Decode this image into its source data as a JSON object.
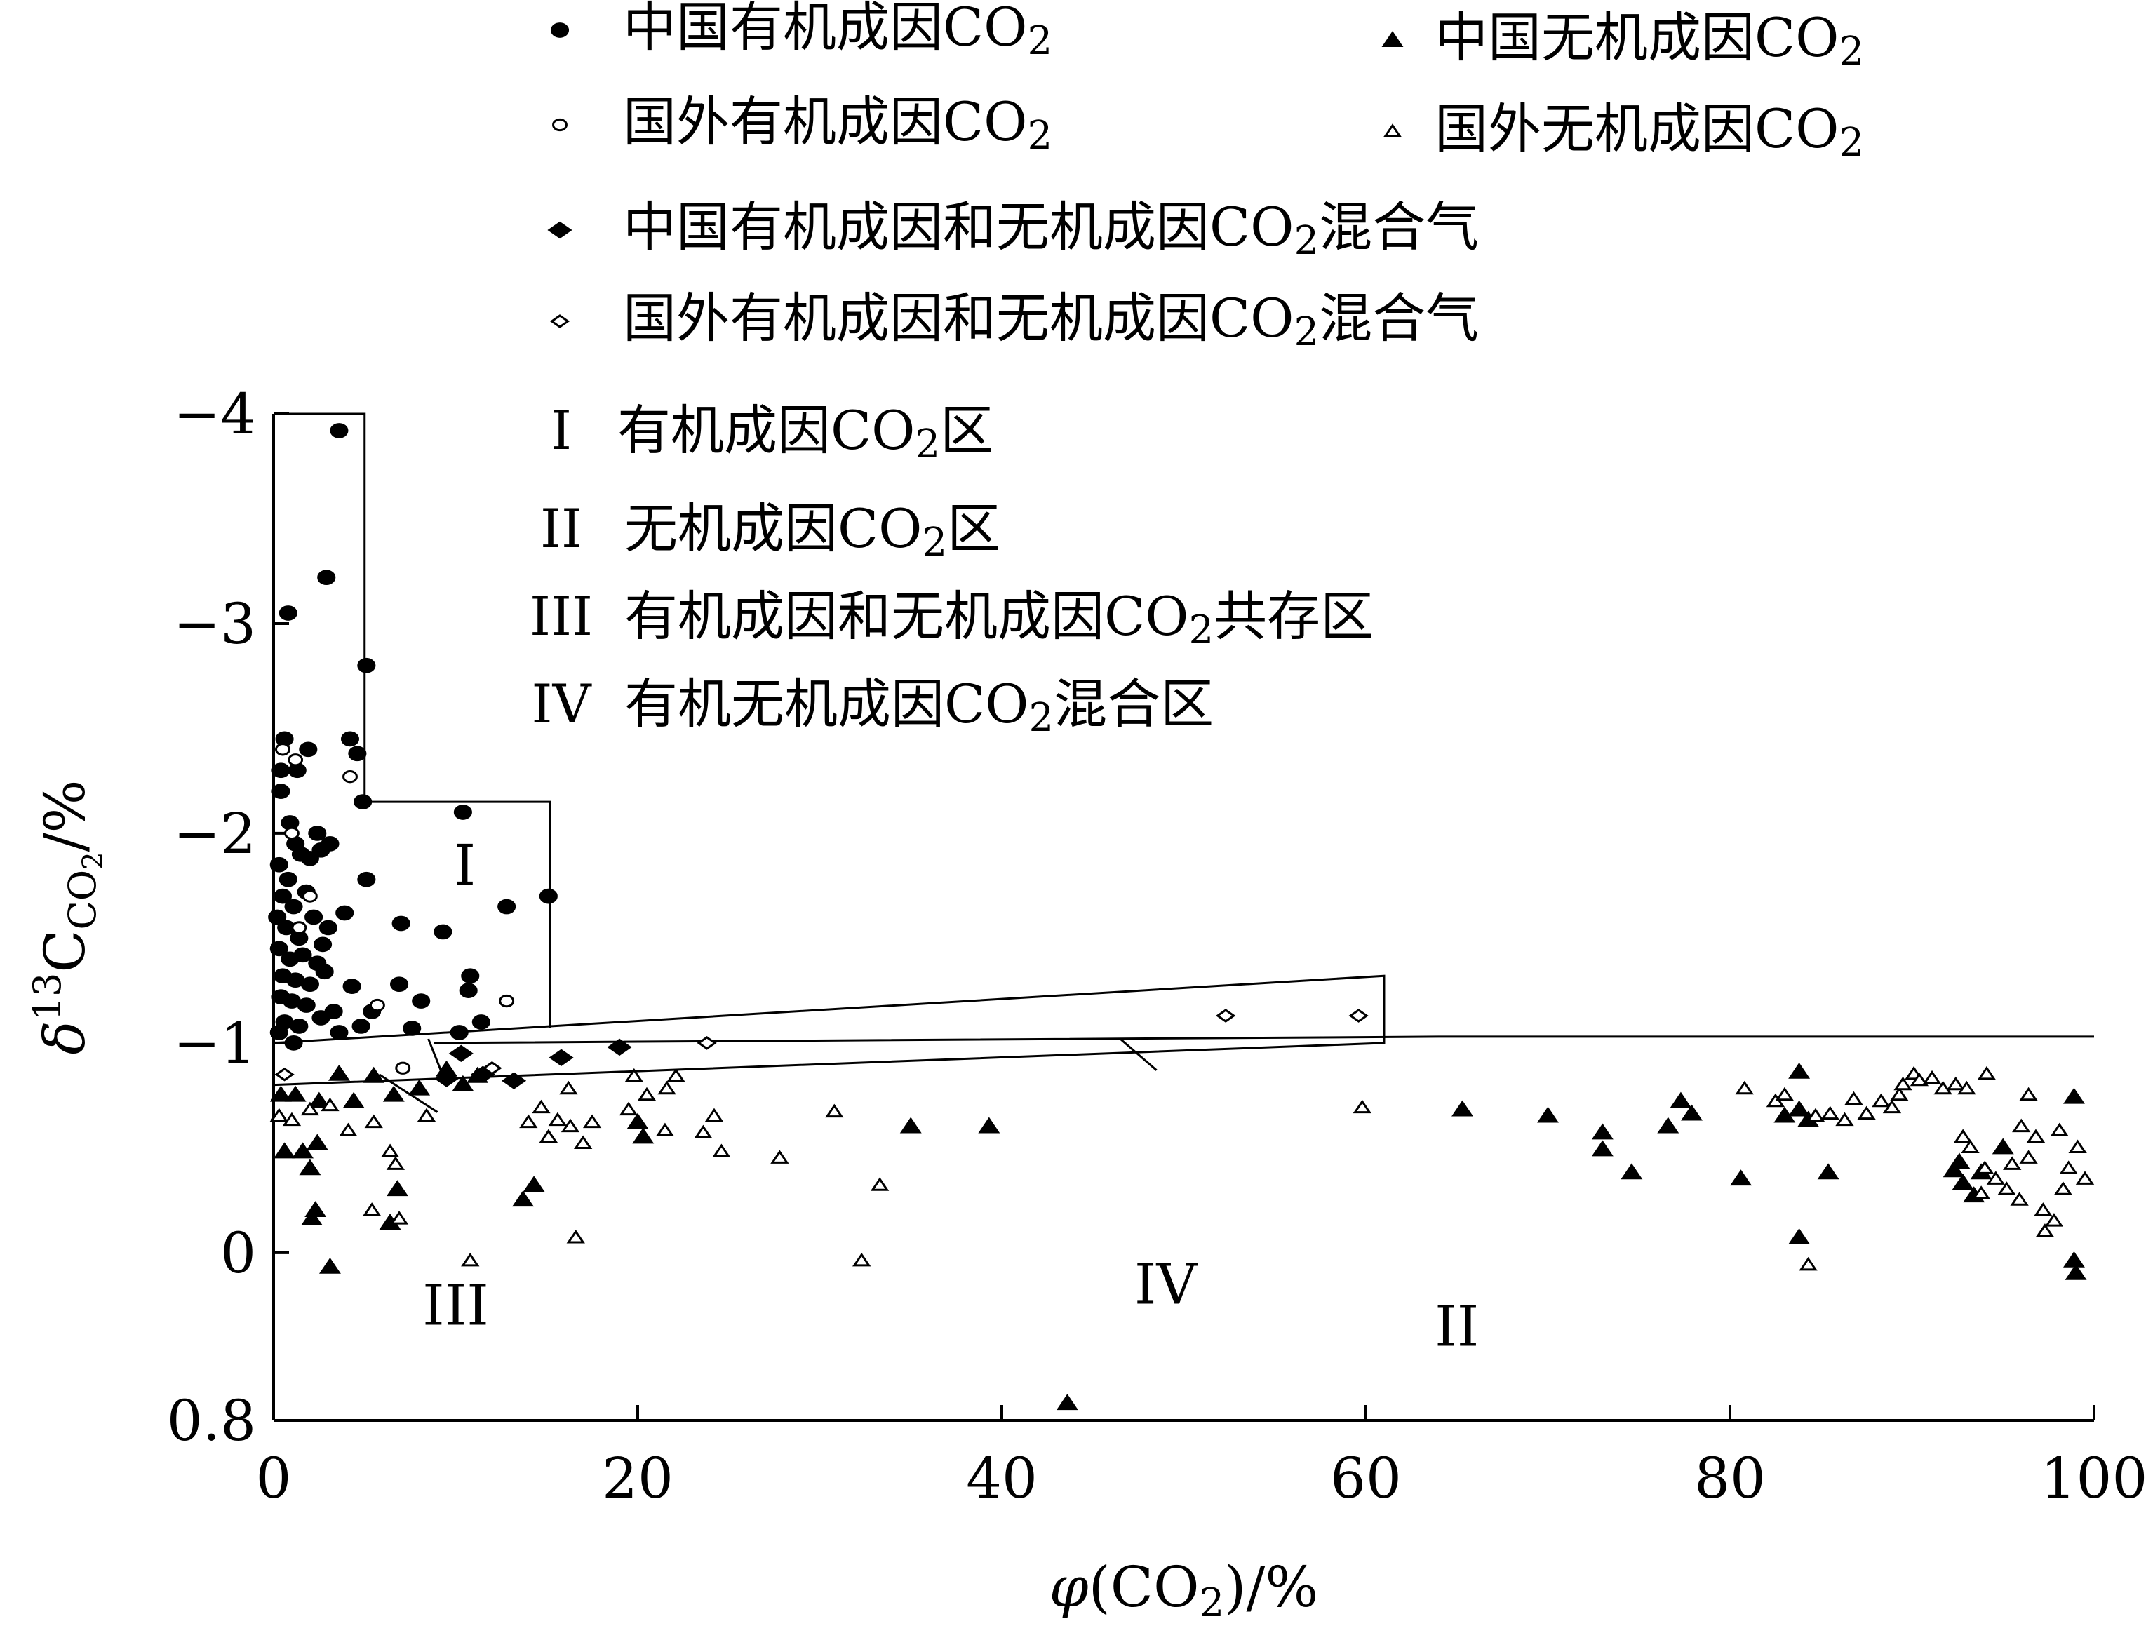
{
  "chart_data": {
    "type": "scatter",
    "xlabel": "φ(CO₂)/%",
    "ylabel": "δ13C_CO₂/%",
    "ylabel_parts": {
      "symbol": "δ",
      "sup": "13",
      "main": "C",
      "sub": "CO",
      "sub2": "2",
      "unit": "/%"
    },
    "xlabel_parts": {
      "symbol": "φ",
      "open": "(CO",
      "sub": "2",
      "close": ")/%"
    },
    "xlim": [
      0,
      100
    ],
    "ylim": [
      0.8,
      -4
    ],
    "x_ticks": [
      0,
      20,
      40,
      60,
      80,
      100
    ],
    "y_ticks": [
      {
        "value": -4,
        "label": "−4"
      },
      {
        "value": -3,
        "label": "−3"
      },
      {
        "value": -2,
        "label": "−2"
      },
      {
        "value": -1,
        "label": "−1"
      },
      {
        "value": 0,
        "label": "0"
      },
      {
        "value": 0.8,
        "label": "0.8"
      }
    ],
    "legend": [
      {
        "key": "cn_org",
        "marker": "circle-filled",
        "text": "中国有机成因CO",
        "sub": "2"
      },
      {
        "key": "cn_inorg",
        "marker": "triangle-filled",
        "text": "中国无机成因CO",
        "sub": "2"
      },
      {
        "key": "fr_org",
        "marker": "circle-open",
        "text": "国外有机成因CO",
        "sub": "2"
      },
      {
        "key": "fr_inorg",
        "marker": "triangle-open",
        "text": "国外无机成因CO",
        "sub": "2"
      },
      {
        "key": "cn_mix",
        "marker": "diamond-filled",
        "text": "中国有机成因和无机成因CO",
        "sub": "2",
        "suffix": "混合气"
      },
      {
        "key": "fr_mix",
        "marker": "diamond-open",
        "text": "国外有机成因和无机成因CO",
        "sub": "2",
        "suffix": "混合气"
      }
    ],
    "zone_legend": [
      {
        "numeral": "I",
        "text": "有机成因CO",
        "sub": "2",
        "suffix": "区"
      },
      {
        "numeral": "II",
        "text": "无机成因CO",
        "sub": "2",
        "suffix": "区"
      },
      {
        "numeral": "III",
        "text": "有机成因和无机成因CO",
        "sub": "2",
        "suffix": "共存区"
      },
      {
        "numeral": "IV",
        "text": "有机无机成因CO",
        "sub": "2",
        "suffix": "混合区"
      }
    ],
    "region_labels": [
      {
        "text": "I",
        "x": 10.5,
        "y": -1.85
      },
      {
        "text": "II",
        "x": 65,
        "y": 0.35
      },
      {
        "text": "III",
        "x": 10,
        "y": 0.25
      },
      {
        "text": "IV",
        "x": 49,
        "y": 0.15
      }
    ],
    "boundaries": {
      "zone_I": [
        [
          0,
          -4
        ],
        [
          5,
          -4
        ],
        [
          5,
          -2.15
        ],
        [
          15.2,
          -2.15
        ],
        [
          15.2,
          -1.07
        ]
      ],
      "zone_IV": [
        [
          0,
          -1.0
        ],
        [
          61,
          -1.32
        ],
        [
          61,
          -1.0
        ],
        [
          0,
          -0.8
        ]
      ],
      "zone_II_top": [
        [
          8.8,
          -1.0
        ],
        [
          64,
          -1.03
        ],
        [
          100,
          -1.03
        ]
      ],
      "zone_III_divider": [
        [
          8.5,
          -1.02
        ],
        [
          9.5,
          -0.8
        ]
      ],
      "leader_III": [
        [
          5.8,
          -0.85
        ],
        [
          9,
          -0.67
        ]
      ],
      "leader_IV": [
        [
          46.5,
          -1.02
        ],
        [
          48.5,
          -0.87
        ]
      ]
    },
    "series": [
      {
        "key": "cn_org",
        "points": [
          [
            3.6,
            -3.92
          ],
          [
            2.9,
            -3.22
          ],
          [
            0.8,
            -3.05
          ],
          [
            5.1,
            -2.8
          ],
          [
            4.2,
            -2.45
          ],
          [
            4.6,
            -2.38
          ],
          [
            4.9,
            -2.15
          ],
          [
            10.4,
            -2.1
          ],
          [
            0.4,
            -2.2
          ],
          [
            0.9,
            -2.05
          ],
          [
            1.2,
            -1.95
          ],
          [
            0.3,
            -1.85
          ],
          [
            0.8,
            -1.78
          ],
          [
            1.5,
            -1.9
          ],
          [
            2.0,
            -1.88
          ],
          [
            2.6,
            -1.92
          ],
          [
            0.5,
            -1.7
          ],
          [
            1.1,
            -1.65
          ],
          [
            1.8,
            -1.72
          ],
          [
            0.2,
            -1.6
          ],
          [
            0.7,
            -1.55
          ],
          [
            1.4,
            -1.5
          ],
          [
            2.2,
            -1.6
          ],
          [
            3.0,
            -1.55
          ],
          [
            0.3,
            -1.45
          ],
          [
            0.9,
            -1.4
          ],
          [
            1.6,
            -1.42
          ],
          [
            2.4,
            -1.38
          ],
          [
            0.5,
            -1.32
          ],
          [
            1.2,
            -1.3
          ],
          [
            2.0,
            -1.28
          ],
          [
            2.8,
            -1.34
          ],
          [
            0.4,
            -1.22
          ],
          [
            1.0,
            -1.2
          ],
          [
            1.8,
            -1.18
          ],
          [
            0.6,
            -1.1
          ],
          [
            1.4,
            -1.08
          ],
          [
            2.6,
            -1.12
          ],
          [
            0.3,
            -1.05
          ],
          [
            1.1,
            -1.0
          ],
          [
            5.1,
            -1.78
          ],
          [
            15.1,
            -1.7
          ],
          [
            12.8,
            -1.65
          ],
          [
            7.0,
            -1.57
          ],
          [
            9.3,
            -1.53
          ],
          [
            10.8,
            -1.32
          ],
          [
            10.7,
            -1.25
          ],
          [
            4.3,
            -1.27
          ],
          [
            6.9,
            -1.28
          ],
          [
            8.1,
            -1.2
          ],
          [
            11.4,
            -1.1
          ],
          [
            3.3,
            -1.15
          ],
          [
            4.8,
            -1.08
          ],
          [
            5.4,
            -1.15
          ],
          [
            3.6,
            -1.05
          ],
          [
            7.6,
            -1.07
          ],
          [
            10.2,
            -1.05
          ],
          [
            1.3,
            -2.3
          ],
          [
            1.9,
            -2.4
          ],
          [
            0.6,
            -2.45
          ],
          [
            0.4,
            -2.3
          ],
          [
            2.4,
            -2.0
          ],
          [
            3.1,
            -1.95
          ],
          [
            3.9,
            -1.62
          ],
          [
            2.7,
            -1.47
          ]
        ]
      },
      {
        "key": "fr_org",
        "points": [
          [
            0.5,
            -2.4
          ],
          [
            1.2,
            -2.35
          ],
          [
            4.2,
            -2.27
          ],
          [
            1.0,
            -2.0
          ],
          [
            2.0,
            -1.7
          ],
          [
            1.4,
            -1.55
          ],
          [
            12.8,
            -1.2
          ],
          [
            5.7,
            -1.18
          ],
          [
            7.1,
            -0.88
          ]
        ]
      },
      {
        "key": "cn_mix",
        "points": [
          [
            11.5,
            -0.85
          ],
          [
            13.2,
            -0.82
          ],
          [
            15.8,
            -0.93
          ],
          [
            19.0,
            -0.98
          ],
          [
            9.5,
            -0.83
          ],
          [
            10.3,
            -0.95
          ]
        ]
      },
      {
        "key": "fr_mix",
        "points": [
          [
            52.3,
            -1.13
          ],
          [
            59.6,
            -1.13
          ],
          [
            23.8,
            -1.0
          ],
          [
            12.0,
            -0.88
          ],
          [
            0.6,
            -0.85
          ]
        ]
      },
      {
        "key": "cn_inorg",
        "points": [
          [
            0.4,
            -0.75
          ],
          [
            1.2,
            -0.75
          ],
          [
            2.5,
            -0.72
          ],
          [
            3.6,
            -0.85
          ],
          [
            4.4,
            -0.72
          ],
          [
            5.5,
            -0.84
          ],
          [
            6.6,
            -0.75
          ],
          [
            8.0,
            -0.78
          ],
          [
            0.6,
            -0.48
          ],
          [
            1.6,
            -0.48
          ],
          [
            2.4,
            -0.52
          ],
          [
            2.0,
            -0.4
          ],
          [
            2.3,
            -0.2
          ],
          [
            2.1,
            -0.16
          ],
          [
            3.1,
            0.07
          ],
          [
            6.4,
            -0.14
          ],
          [
            6.8,
            -0.3
          ],
          [
            9.5,
            -0.87
          ],
          [
            10.4,
            -0.8
          ],
          [
            11.2,
            -0.84
          ],
          [
            13.7,
            -0.25
          ],
          [
            14.3,
            -0.32
          ],
          [
            20.0,
            -0.62
          ],
          [
            20.3,
            -0.55
          ],
          [
            35.0,
            -0.6
          ],
          [
            39.3,
            -0.6
          ],
          [
            43.6,
            0.72
          ],
          [
            65.3,
            -0.68
          ],
          [
            70.0,
            -0.65
          ],
          [
            73.0,
            -0.57
          ],
          [
            73.0,
            -0.49
          ],
          [
            74.6,
            -0.38
          ],
          [
            76.6,
            -0.6
          ],
          [
            77.3,
            -0.72
          ],
          [
            77.9,
            -0.66
          ],
          [
            80.6,
            -0.35
          ],
          [
            83.0,
            -0.65
          ],
          [
            83.8,
            -0.86
          ],
          [
            83.8,
            -0.68
          ],
          [
            84.3,
            -0.63
          ],
          [
            85.4,
            -0.38
          ],
          [
            83.8,
            -0.07
          ],
          [
            92.6,
            -0.43
          ],
          [
            92.8,
            -0.33
          ],
          [
            93.4,
            -0.27
          ],
          [
            93.8,
            -0.38
          ],
          [
            98.9,
            -0.74
          ],
          [
            98.9,
            0.04
          ],
          [
            99.0,
            0.1
          ],
          [
            92.3,
            -0.39
          ],
          [
            95.0,
            -0.5
          ]
        ]
      },
      {
        "key": "fr_inorg",
        "points": [
          [
            0.3,
            -0.65
          ],
          [
            1.0,
            -0.63
          ],
          [
            2.0,
            -0.68
          ],
          [
            3.1,
            -0.7
          ],
          [
            4.1,
            -0.58
          ],
          [
            5.5,
            -0.62
          ],
          [
            6.4,
            -0.48
          ],
          [
            6.7,
            -0.42
          ],
          [
            8.4,
            -0.65
          ],
          [
            5.4,
            -0.2
          ],
          [
            6.9,
            -0.16
          ],
          [
            10.8,
            0.04
          ],
          [
            14.0,
            -0.62
          ],
          [
            14.7,
            -0.69
          ],
          [
            15.1,
            -0.55
          ],
          [
            15.6,
            -0.63
          ],
          [
            16.2,
            -0.78
          ],
          [
            16.3,
            -0.6
          ],
          [
            16.6,
            -0.07
          ],
          [
            17.0,
            -0.52
          ],
          [
            17.5,
            -0.62
          ],
          [
            19.5,
            -0.68
          ],
          [
            19.8,
            -0.84
          ],
          [
            20.5,
            -0.75
          ],
          [
            21.5,
            -0.58
          ],
          [
            21.6,
            -0.78
          ],
          [
            22.1,
            -0.84
          ],
          [
            23.6,
            -0.57
          ],
          [
            24.2,
            -0.65
          ],
          [
            24.6,
            -0.48
          ],
          [
            27.8,
            -0.45
          ],
          [
            30.8,
            -0.67
          ],
          [
            32.3,
            0.04
          ],
          [
            33.3,
            -0.32
          ],
          [
            59.8,
            -0.69
          ],
          [
            80.8,
            -0.78
          ],
          [
            82.5,
            -0.72
          ],
          [
            83.0,
            -0.75
          ],
          [
            84.3,
            0.06
          ],
          [
            84.7,
            -0.65
          ],
          [
            85.5,
            -0.66
          ],
          [
            86.3,
            -0.63
          ],
          [
            86.8,
            -0.73
          ],
          [
            87.5,
            -0.66
          ],
          [
            88.3,
            -0.72
          ],
          [
            88.9,
            -0.69
          ],
          [
            89.3,
            -0.75
          ],
          [
            89.5,
            -0.8
          ],
          [
            90.1,
            -0.85
          ],
          [
            90.4,
            -0.82
          ],
          [
            91.1,
            -0.83
          ],
          [
            91.7,
            -0.78
          ],
          [
            92.4,
            -0.8
          ],
          [
            93.0,
            -0.78
          ],
          [
            94.1,
            -0.85
          ],
          [
            92.8,
            -0.55
          ],
          [
            93.2,
            -0.5
          ],
          [
            94.0,
            -0.4
          ],
          [
            94.6,
            -0.35
          ],
          [
            95.2,
            -0.3
          ],
          [
            95.9,
            -0.25
          ],
          [
            96.4,
            -0.45
          ],
          [
            96.8,
            -0.55
          ],
          [
            97.2,
            -0.2
          ],
          [
            97.8,
            -0.15
          ],
          [
            98.3,
            -0.3
          ],
          [
            98.6,
            -0.4
          ],
          [
            99.1,
            -0.5
          ],
          [
            99.5,
            -0.35
          ],
          [
            96.4,
            -0.75
          ],
          [
            98.1,
            -0.58
          ],
          [
            93.8,
            -0.28
          ],
          [
            95.5,
            -0.42
          ],
          [
            97.3,
            -0.1
          ],
          [
            96.0,
            -0.6
          ]
        ]
      }
    ]
  }
}
